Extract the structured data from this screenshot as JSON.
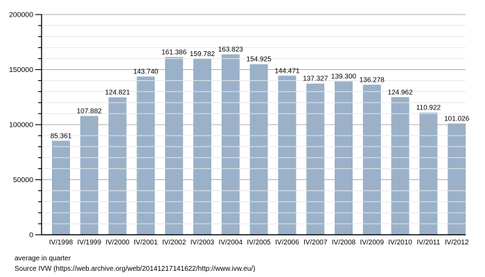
{
  "chart_data": {
    "type": "bar",
    "title": "",
    "xlabel": "",
    "ylabel": "",
    "categories": [
      "IV/1998",
      "IV/1999",
      "IV/2000",
      "IV/2001",
      "IV/2002",
      "IV/2003",
      "IV/2004",
      "IV/2005",
      "IV/2006",
      "IV/2007",
      "IV/2008",
      "IV/2009",
      "IV/2010",
      "IV/2011",
      "IV/2012"
    ],
    "values": [
      85361,
      107882,
      124821,
      143740,
      161386,
      159782,
      163823,
      154925,
      144471,
      137327,
      139300,
      136278,
      124962,
      110922,
      101026
    ],
    "value_labels": [
      "85.361",
      "107.882",
      "124.821",
      "143.740",
      "161.386",
      "159.782",
      "163.823",
      "154.925",
      "144.471",
      "137.327",
      "139.300",
      "136.278",
      "124.962",
      "110.922",
      "101.026"
    ],
    "ylim": [
      0,
      200000
    ],
    "ytick_major": 50000,
    "ytick_minor": 10000,
    "ytick_labels": [
      "0",
      "50000",
      "100000",
      "150000",
      "200000"
    ],
    "grid": "horizontal major+minor, drawn over bars",
    "legend": "none"
  },
  "colors": {
    "bar": "#9AB1C9",
    "grid_major": "#ABABAB",
    "grid_minor": "#E7E7E7",
    "axis": "#000000",
    "text": "#000000",
    "background": "#FFFFFF"
  },
  "footer": {
    "note": "average in quarter",
    "source": "Source IVW (https://web.archive.org/web/20141217141622/http://www.ivw.eu/)"
  }
}
